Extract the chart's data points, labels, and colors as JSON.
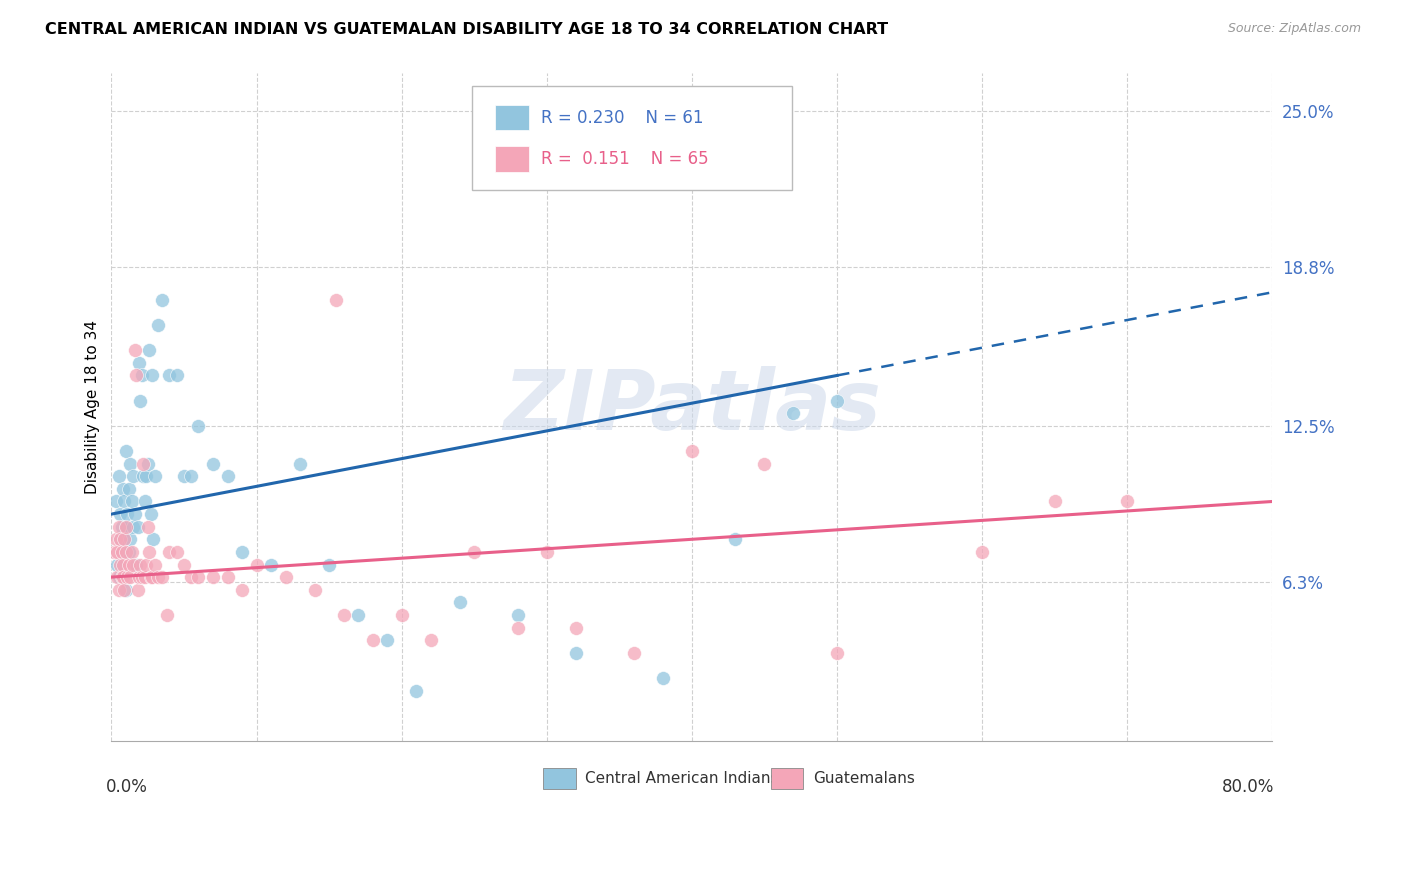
{
  "title": "CENTRAL AMERICAN INDIAN VS GUATEMALAN DISABILITY AGE 18 TO 34 CORRELATION CHART",
  "source": "Source: ZipAtlas.com",
  "ylabel": "Disability Age 18 to 34",
  "xmin": 0.0,
  "xmax": 80.0,
  "ymin": 0.0,
  "ymax": 26.5,
  "yticks": [
    6.3,
    12.5,
    18.8,
    25.0
  ],
  "xticks": [
    0.0,
    10.0,
    20.0,
    30.0,
    40.0,
    50.0,
    60.0,
    70.0,
    80.0
  ],
  "r_blue": 0.23,
  "n_blue": 61,
  "r_pink": 0.151,
  "n_pink": 65,
  "legend_label_blue": "Central American Indians",
  "legend_label_pink": "Guatemalans",
  "blue_color": "#92c5de",
  "pink_color": "#f4a6b8",
  "trend_blue_color": "#2166ac",
  "trend_pink_color": "#e8608a",
  "watermark": "ZIPatlas",
  "blue_trend_x0": 0.0,
  "blue_trend_y0": 9.0,
  "blue_trend_x1": 50.0,
  "blue_trend_y1": 14.5,
  "blue_solid_end": 50.0,
  "blue_dashed_end": 80.0,
  "pink_trend_x0": 0.0,
  "pink_trend_y0": 6.5,
  "pink_trend_x1": 80.0,
  "pink_trend_y1": 9.5,
  "blue_points_x": [
    0.3,
    0.4,
    0.5,
    0.5,
    0.6,
    0.6,
    0.7,
    0.7,
    0.8,
    0.8,
    0.9,
    0.9,
    1.0,
    1.0,
    1.1,
    1.1,
    1.2,
    1.2,
    1.3,
    1.3,
    1.4,
    1.5,
    1.5,
    1.6,
    1.7,
    1.8,
    1.9,
    2.0,
    2.1,
    2.2,
    2.3,
    2.4,
    2.5,
    2.6,
    2.7,
    2.8,
    2.9,
    3.0,
    3.2,
    3.5,
    4.0,
    4.5,
    5.0,
    5.5,
    6.0,
    7.0,
    8.0,
    9.0,
    11.0,
    13.0,
    15.0,
    17.0,
    19.0,
    21.0,
    24.0,
    28.0,
    32.0,
    38.0,
    43.0,
    47.0,
    50.0
  ],
  "blue_points_y": [
    9.5,
    7.0,
    6.5,
    10.5,
    9.0,
    8.0,
    7.5,
    8.5,
    6.5,
    10.0,
    8.0,
    9.5,
    6.0,
    11.5,
    8.5,
    9.0,
    10.0,
    7.5,
    8.0,
    11.0,
    9.5,
    10.5,
    8.5,
    9.0,
    7.0,
    8.5,
    15.0,
    13.5,
    14.5,
    10.5,
    9.5,
    10.5,
    11.0,
    15.5,
    9.0,
    14.5,
    8.0,
    10.5,
    16.5,
    17.5,
    14.5,
    14.5,
    10.5,
    10.5,
    12.5,
    11.0,
    10.5,
    7.5,
    7.0,
    11.0,
    7.0,
    5.0,
    4.0,
    2.0,
    5.5,
    5.0,
    3.5,
    2.5,
    8.0,
    13.0,
    13.5
  ],
  "pink_points_x": [
    0.2,
    0.3,
    0.4,
    0.4,
    0.5,
    0.5,
    0.6,
    0.6,
    0.7,
    0.7,
    0.8,
    0.8,
    0.9,
    0.9,
    1.0,
    1.0,
    1.1,
    1.2,
    1.3,
    1.4,
    1.5,
    1.6,
    1.7,
    1.8,
    1.9,
    2.0,
    2.1,
    2.2,
    2.3,
    2.4,
    2.5,
    2.6,
    2.7,
    2.8,
    3.0,
    3.2,
    3.5,
    4.0,
    4.5,
    5.0,
    5.5,
    6.0,
    7.0,
    8.0,
    9.0,
    10.0,
    12.0,
    14.0,
    16.0,
    18.0,
    20.0,
    22.0,
    25.0,
    28.0,
    32.0,
    36.0,
    40.0,
    45.0,
    50.0,
    60.0,
    65.0,
    70.0,
    3.8,
    15.5,
    30.0
  ],
  "pink_points_y": [
    7.5,
    8.0,
    6.5,
    7.5,
    8.5,
    6.0,
    7.0,
    8.0,
    6.5,
    7.5,
    7.0,
    6.5,
    8.0,
    6.0,
    7.5,
    8.5,
    6.5,
    7.0,
    6.5,
    7.5,
    7.0,
    15.5,
    14.5,
    6.0,
    6.5,
    7.0,
    6.5,
    11.0,
    6.5,
    7.0,
    8.5,
    7.5,
    6.5,
    6.5,
    7.0,
    6.5,
    6.5,
    7.5,
    7.5,
    7.0,
    6.5,
    6.5,
    6.5,
    6.5,
    6.0,
    7.0,
    6.5,
    6.0,
    5.0,
    4.0,
    5.0,
    4.0,
    7.5,
    4.5,
    4.5,
    3.5,
    11.5,
    11.0,
    3.5,
    7.5,
    9.5,
    9.5,
    5.0,
    17.5,
    7.5
  ]
}
